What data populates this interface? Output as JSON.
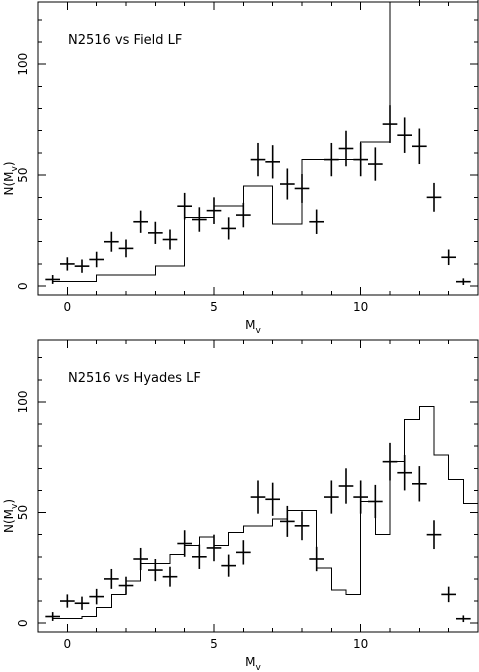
{
  "chart_data": [
    {
      "type": "scatter",
      "title": "N2516 vs Field LF",
      "xlabel": "M",
      "xlabel_sub": "v",
      "ylabel": "N(M",
      "ylabel_sub": "v",
      "ylabel_close": ")",
      "xlim": [
        -1,
        14
      ],
      "ylim": [
        -4,
        128
      ],
      "xticks": [
        0,
        5,
        10
      ],
      "yticks": [
        0,
        50,
        100
      ],
      "points": {
        "x": [
          -0.5,
          0,
          0.5,
          1,
          1.5,
          2,
          2.5,
          3,
          3.5,
          4,
          4.5,
          5,
          5.5,
          6,
          6.5,
          7,
          7.5,
          8,
          8.5,
          9,
          9.5,
          10,
          10.5,
          11,
          11.5,
          12,
          12.5,
          13,
          13.5
        ],
        "y": [
          3,
          10,
          9,
          12,
          20,
          17,
          29,
          24,
          21,
          36,
          30,
          34,
          26,
          32,
          57,
          56,
          46,
          44,
          29,
          57,
          62,
          57,
          55,
          73,
          68,
          63,
          40,
          13,
          2
        ],
        "yerr": [
          2,
          3,
          3,
          3.5,
          4.5,
          4,
          5,
          5,
          4.5,
          6,
          5.5,
          6,
          5,
          5.5,
          7.5,
          7.5,
          7,
          6.5,
          5.5,
          7.5,
          8,
          7.5,
          7.5,
          8.5,
          8,
          8,
          6.5,
          3.5,
          1.5
        ]
      },
      "model": {
        "x": [
          -0.5,
          1,
          3,
          4,
          5,
          6,
          7,
          8,
          10,
          11,
          12,
          13,
          14
        ],
        "y": [
          2,
          5,
          9,
          31,
          36,
          45,
          28,
          57,
          65,
          128,
          130,
          132,
          103
        ]
      }
    },
    {
      "type": "scatter",
      "title": "N2516 vs Hyades LF",
      "xlabel": "M",
      "xlabel_sub": "v",
      "ylabel": "N(M",
      "ylabel_sub": "v",
      "ylabel_close": ")",
      "xlim": [
        -1,
        14
      ],
      "ylim": [
        -4,
        128
      ],
      "xticks": [
        0,
        5,
        10
      ],
      "yticks": [
        0,
        50,
        100
      ],
      "points": {
        "x": [
          -0.5,
          0,
          0.5,
          1,
          1.5,
          2,
          2.5,
          3,
          3.5,
          4,
          4.5,
          5,
          5.5,
          6,
          6.5,
          7,
          7.5,
          8,
          8.5,
          9,
          9.5,
          10,
          10.5,
          11,
          11.5,
          12,
          12.5,
          13,
          13.5
        ],
        "y": [
          3,
          10,
          9,
          12,
          20,
          17,
          29,
          24,
          21,
          36,
          30,
          34,
          26,
          32,
          57,
          56,
          46,
          44,
          29,
          57,
          62,
          57,
          55,
          73,
          68,
          63,
          40,
          13,
          2
        ],
        "yerr": [
          2,
          3,
          3,
          3.5,
          4.5,
          4,
          5,
          5,
          4.5,
          6,
          5.5,
          6,
          5,
          5.5,
          7.5,
          7.5,
          7,
          6.5,
          5.5,
          7.5,
          8,
          7.5,
          7.5,
          8.5,
          8,
          8,
          6.5,
          3.5,
          1.5
        ]
      },
      "model": {
        "x": [
          -0.5,
          0,
          0.5,
          1,
          1.5,
          2,
          2.5,
          3,
          3.5,
          4,
          4.5,
          5,
          5.5,
          6,
          6.5,
          7,
          7.5,
          8,
          8.5,
          9,
          9.5,
          10,
          10.5,
          11,
          11.5,
          12,
          12.5,
          13,
          13.5,
          14
        ],
        "y": [
          2,
          2,
          3,
          7,
          13,
          19,
          27,
          27,
          31,
          35,
          39,
          35,
          41,
          44,
          44,
          47,
          51,
          51,
          25,
          15,
          13,
          55,
          40,
          73,
          92,
          98,
          76,
          65,
          54,
          54
        ]
      }
    }
  ]
}
